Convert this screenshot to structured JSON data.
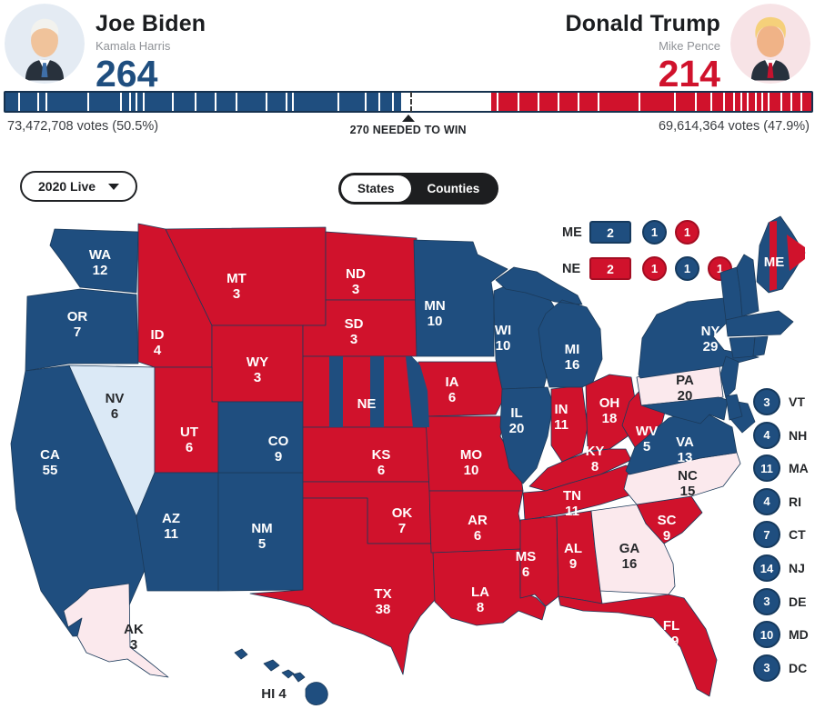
{
  "header": {
    "biden": {
      "name": "Joe Biden",
      "running_mate": "Kamala Harris",
      "electoral_votes": "264"
    },
    "trump": {
      "name": "Donald Trump",
      "running_mate": "Mike Pence",
      "electoral_votes": "214"
    }
  },
  "ev_bar": {
    "left_votes": "73,472,708 votes (50.5%)",
    "right_votes": "69,614,364 votes (47.9%)",
    "threshold_label": "270 NEEDED TO WIN",
    "dem_pct": 49.07,
    "rep_pct": 39.78,
    "threshold_pct": 50.19,
    "dem_dividers_pct": [
      1.6,
      3.9,
      5.0,
      10.2,
      14.2,
      15.3,
      16.1,
      17.0,
      20.6,
      23.5,
      26.0,
      28.6,
      32.3,
      34.8,
      35.6,
      41.2,
      44.6,
      46.3,
      48.0
    ],
    "rep_dividers_pct": [
      61.0,
      63.5,
      66.0,
      68.5,
      71.0,
      73.5,
      78.5,
      83.0,
      85.5,
      87.5,
      89.0,
      90.3,
      91.2,
      92.0,
      93.0,
      93.8,
      94.6,
      96.2,
      97.4,
      98.6
    ]
  },
  "controls": {
    "timeline_label": "2020 Live",
    "view_toggle": [
      "States",
      "Counties"
    ],
    "active_view": "States"
  },
  "split_legend": {
    "rows": [
      {
        "state": "ME",
        "blocks": [
          {
            "shape": "rect",
            "value": "2",
            "party": "dem"
          },
          {
            "shape": "circle",
            "value": "1",
            "party": "dem"
          },
          {
            "shape": "circle",
            "value": "1",
            "party": "rep"
          }
        ]
      },
      {
        "state": "NE",
        "blocks": [
          {
            "shape": "rect",
            "value": "2",
            "party": "rep"
          },
          {
            "shape": "circle",
            "value": "1",
            "party": "rep"
          },
          {
            "shape": "circle",
            "value": "1",
            "party": "dem"
          },
          {
            "shape": "circle",
            "value": "1",
            "party": "rep"
          }
        ]
      }
    ]
  },
  "colors": {
    "dem": "#1f4e7f",
    "rep": "#d0122c",
    "dem_lean": "#dbe9f6",
    "rep_lean": "#fbe9ed",
    "map_border": "#1b3a5a",
    "dark_text": "#26282b"
  },
  "map_states": [
    {
      "abbr": "WA",
      "ev": 12,
      "party": "dem"
    },
    {
      "abbr": "OR",
      "ev": 7,
      "party": "dem"
    },
    {
      "abbr": "CA",
      "ev": 55,
      "party": "dem"
    },
    {
      "abbr": "NV",
      "ev": 6,
      "party": "dem_lean"
    },
    {
      "abbr": "ID",
      "ev": 4,
      "party": "rep"
    },
    {
      "abbr": "MT",
      "ev": 3,
      "party": "rep"
    },
    {
      "abbr": "WY",
      "ev": 3,
      "party": "rep"
    },
    {
      "abbr": "UT",
      "ev": 6,
      "party": "rep"
    },
    {
      "abbr": "AZ",
      "ev": 11,
      "party": "dem"
    },
    {
      "abbr": "NM",
      "ev": 5,
      "party": "dem"
    },
    {
      "abbr": "CO",
      "ev": 9,
      "party": "dem"
    },
    {
      "abbr": "ND",
      "ev": 3,
      "party": "rep"
    },
    {
      "abbr": "SD",
      "ev": 3,
      "party": "rep"
    },
    {
      "abbr": "NE",
      "ev": null,
      "party": "rep",
      "split": true
    },
    {
      "abbr": "KS",
      "ev": 6,
      "party": "rep"
    },
    {
      "abbr": "OK",
      "ev": 7,
      "party": "rep"
    },
    {
      "abbr": "TX",
      "ev": 38,
      "party": "rep"
    },
    {
      "abbr": "MN",
      "ev": 10,
      "party": "dem"
    },
    {
      "abbr": "IA",
      "ev": 6,
      "party": "rep"
    },
    {
      "abbr": "MO",
      "ev": 10,
      "party": "rep"
    },
    {
      "abbr": "AR",
      "ev": 6,
      "party": "rep"
    },
    {
      "abbr": "LA",
      "ev": 8,
      "party": "rep"
    },
    {
      "abbr": "WI",
      "ev": 10,
      "party": "dem"
    },
    {
      "abbr": "IL",
      "ev": 20,
      "party": "dem"
    },
    {
      "abbr": "IN",
      "ev": 11,
      "party": "rep"
    },
    {
      "abbr": "MI",
      "ev": 16,
      "party": "dem"
    },
    {
      "abbr": "OH",
      "ev": 18,
      "party": "rep"
    },
    {
      "abbr": "KY",
      "ev": 8,
      "party": "rep"
    },
    {
      "abbr": "TN",
      "ev": 11,
      "party": "rep"
    },
    {
      "abbr": "MS",
      "ev": 6,
      "party": "rep"
    },
    {
      "abbr": "AL",
      "ev": 9,
      "party": "rep"
    },
    {
      "abbr": "GA",
      "ev": 16,
      "party": "rep_lean"
    },
    {
      "abbr": "FL",
      "ev": 29,
      "party": "rep"
    },
    {
      "abbr": "SC",
      "ev": 9,
      "party": "rep"
    },
    {
      "abbr": "NC",
      "ev": 15,
      "party": "rep_lean"
    },
    {
      "abbr": "VA",
      "ev": 13,
      "party": "dem"
    },
    {
      "abbr": "WV",
      "ev": 5,
      "party": "rep"
    },
    {
      "abbr": "PA",
      "ev": 20,
      "party": "rep_lean"
    },
    {
      "abbr": "NY",
      "ev": 29,
      "party": "dem"
    },
    {
      "abbr": "ME",
      "ev": null,
      "party": "dem",
      "split": true
    },
    {
      "abbr": "VT",
      "ev": null,
      "party": "dem"
    },
    {
      "abbr": "NH",
      "ev": null,
      "party": "dem"
    },
    {
      "abbr": "MA",
      "ev": null,
      "party": "dem"
    },
    {
      "abbr": "CT",
      "ev": null,
      "party": "dem"
    },
    {
      "abbr": "RI",
      "ev": null,
      "party": "dem"
    },
    {
      "abbr": "NJ",
      "ev": null,
      "party": "dem"
    },
    {
      "abbr": "MD",
      "ev": null,
      "party": "dem"
    },
    {
      "abbr": "DE",
      "ev": null,
      "party": "dem"
    },
    {
      "abbr": "AK",
      "ev": 3,
      "party": "rep_lean"
    },
    {
      "abbr": "HI",
      "ev": 4,
      "party": "dem"
    }
  ],
  "sidebar_states": [
    {
      "abbr": "VT",
      "ev": 3,
      "party": "dem"
    },
    {
      "abbr": "NH",
      "ev": 4,
      "party": "dem"
    },
    {
      "abbr": "MA",
      "ev": 11,
      "party": "dem"
    },
    {
      "abbr": "RI",
      "ev": 4,
      "party": "dem"
    },
    {
      "abbr": "CT",
      "ev": 7,
      "party": "dem"
    },
    {
      "abbr": "NJ",
      "ev": 14,
      "party": "dem"
    },
    {
      "abbr": "DE",
      "ev": 3,
      "party": "dem"
    },
    {
      "abbr": "MD",
      "ev": 10,
      "party": "dem"
    },
    {
      "abbr": "DC",
      "ev": 3,
      "party": "dem"
    }
  ]
}
